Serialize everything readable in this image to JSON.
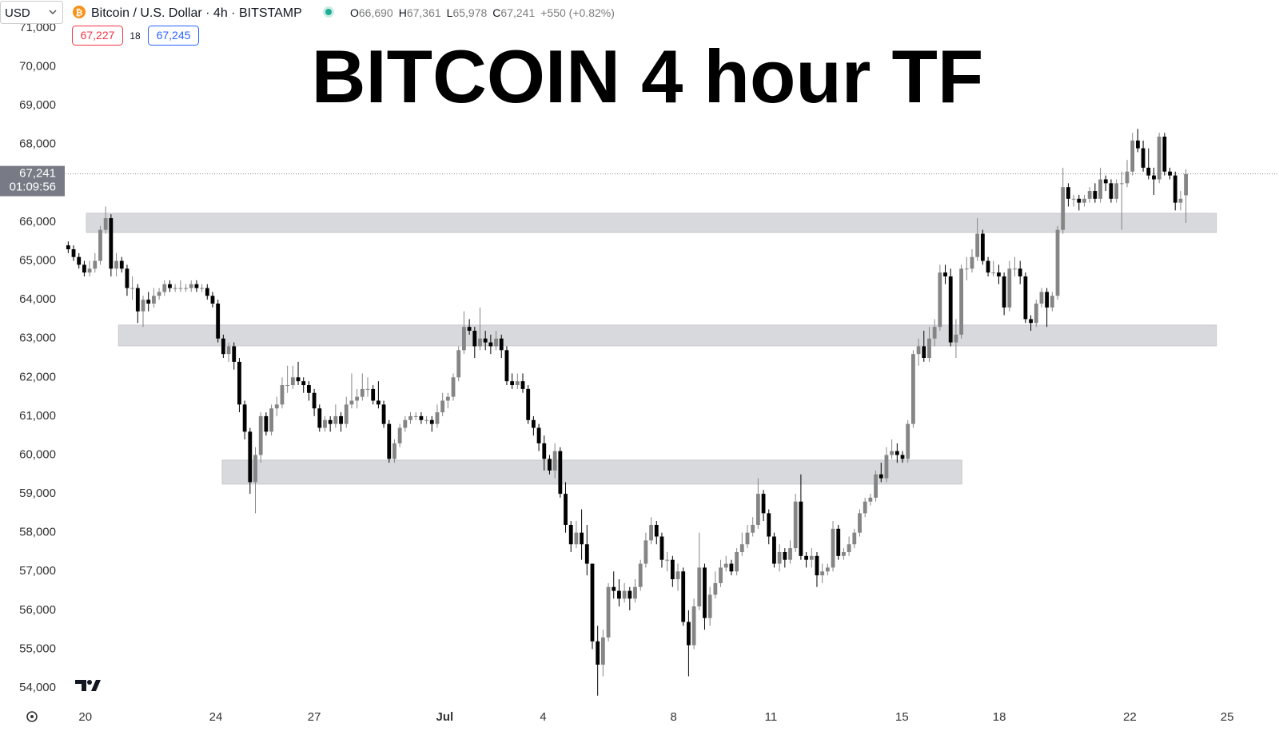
{
  "chart_data": {
    "type": "candlestick",
    "title": "BITCOIN 4 hour TF",
    "currency": "USD",
    "symbol": "Bitcoin / U.S. Dollar · 4h · BITSTAMP",
    "ohlc_legend": [
      {
        "key": "O",
        "text": "66,690"
      },
      {
        "key": "H",
        "text": "67,361"
      },
      {
        "key": "L",
        "text": "65,978"
      },
      {
        "key": "C",
        "text": "67,241"
      }
    ],
    "change": "+550 (+0.82%)",
    "bid": "67,227",
    "spread": "18",
    "ask": "67,245",
    "last_price": {
      "value": 67241,
      "label": "67,241"
    },
    "countdown": "01:09:56",
    "up_color": "#858585",
    "down_color": "#000000",
    "ylim": [
      53610,
      71720
    ],
    "yticks": [
      {
        "value": 54000,
        "label": "54,000"
      },
      {
        "value": 55000,
        "label": "55,000"
      },
      {
        "value": 56000,
        "label": "56,000"
      },
      {
        "value": 57000,
        "label": "57,000"
      },
      {
        "value": 58000,
        "label": "58,000"
      },
      {
        "value": 59000,
        "label": "59,000"
      },
      {
        "value": 60000,
        "label": "60,000"
      },
      {
        "value": 61000,
        "label": "61,000"
      },
      {
        "value": 62000,
        "label": "62,000"
      },
      {
        "value": 63000,
        "label": "63,000"
      },
      {
        "value": 64000,
        "label": "64,000"
      },
      {
        "value": 65000,
        "label": "65,000"
      },
      {
        "value": 66000,
        "label": "66,000"
      },
      {
        "value": 67000,
        "label": "67,000"
      },
      {
        "value": 68000,
        "label": "68,000"
      },
      {
        "value": 69000,
        "label": "69,000"
      },
      {
        "value": 70000,
        "label": "70,000"
      },
      {
        "value": 71000,
        "label": "71,000"
      }
    ],
    "xlim": [
      -0.5,
      226.4
    ],
    "xticks": [
      {
        "value": 3.2,
        "label": "20"
      },
      {
        "value": 27.6,
        "label": "24"
      },
      {
        "value": 46.0,
        "label": "27"
      },
      {
        "value": 70.4,
        "label": "Jul"
      },
      {
        "value": 88.8,
        "label": "4"
      },
      {
        "value": 113.2,
        "label": "8"
      },
      {
        "value": 131.4,
        "label": "11"
      },
      {
        "value": 155.9,
        "label": "15"
      },
      {
        "value": 174.1,
        "label": "18"
      },
      {
        "value": 198.5,
        "label": "22"
      },
      {
        "value": 216.7,
        "label": "25"
      }
    ],
    "zones": [
      {
        "low": 65733,
        "high": 66226,
        "start": 3.4,
        "end": 214.7
      },
      {
        "low": 62811,
        "high": 63346,
        "start": 9.4,
        "end": 214.7
      },
      {
        "low": 59251,
        "high": 59868,
        "start": 28.8,
        "end": 167.1
      }
    ],
    "candles": [
      [
        65400,
        65500,
        65200,
        65300
      ],
      [
        65300,
        65400,
        65000,
        65100
      ],
      [
        65100,
        65200,
        64800,
        64900
      ],
      [
        64900,
        65000,
        64600,
        64700
      ],
      [
        64700,
        65000,
        64600,
        64800
      ],
      [
        64800,
        65200,
        64700,
        65000
      ],
      [
        65000,
        65900,
        64900,
        65800
      ],
      [
        65800,
        66400,
        65700,
        66100
      ],
      [
        66100,
        66200,
        64600,
        64800
      ],
      [
        64800,
        65200,
        64600,
        65000
      ],
      [
        65000,
        65100,
        64700,
        64800
      ],
      [
        64800,
        64900,
        64100,
        64300
      ],
      [
        64300,
        64600,
        64000,
        64300
      ],
      [
        64300,
        64400,
        63400,
        63700
      ],
      [
        63700,
        64100,
        63300,
        64000
      ],
      [
        64000,
        64200,
        63700,
        63900
      ],
      [
        63900,
        64300,
        63800,
        64100
      ],
      [
        64100,
        64300,
        64000,
        64200
      ],
      [
        64200,
        64500,
        64100,
        64400
      ],
      [
        64400,
        64500,
        64200,
        64300
      ],
      [
        64300,
        64400,
        64200,
        64300
      ],
      [
        64300,
        64500,
        64200,
        64300
      ],
      [
        64300,
        64400,
        64200,
        64300
      ],
      [
        64300,
        64500,
        64200,
        64400
      ],
      [
        64400,
        64500,
        64200,
        64300
      ],
      [
        64300,
        64400,
        64200,
        64300
      ],
      [
        64300,
        64400,
        64000,
        64100
      ],
      [
        64100,
        64200,
        63800,
        63900
      ],
      [
        63900,
        64000,
        62900,
        63000
      ],
      [
        63000,
        63100,
        62500,
        62600
      ],
      [
        62600,
        62900,
        62400,
        62800
      ],
      [
        62800,
        62900,
        62200,
        62400
      ],
      [
        62400,
        62500,
        61100,
        61300
      ],
      [
        61300,
        61400,
        60400,
        60600
      ],
      [
        60600,
        60700,
        59000,
        59300
      ],
      [
        59300,
        60200,
        58500,
        60000
      ],
      [
        60000,
        61100,
        59800,
        61000
      ],
      [
        61000,
        61100,
        60500,
        60600
      ],
      [
        60600,
        61300,
        60500,
        61200
      ],
      [
        61200,
        61500,
        61000,
        61300
      ],
      [
        61300,
        62000,
        61200,
        61800
      ],
      [
        61800,
        62300,
        61600,
        61800
      ],
      [
        61800,
        62300,
        61700,
        62000
      ],
      [
        62000,
        62400,
        61800,
        61900
      ],
      [
        61900,
        62000,
        61600,
        61800
      ],
      [
        61800,
        61900,
        61400,
        61600
      ],
      [
        61600,
        61700,
        61000,
        61200
      ],
      [
        61200,
        61300,
        60600,
        60700
      ],
      [
        60700,
        61000,
        60600,
        60900
      ],
      [
        60900,
        61000,
        60600,
        60800
      ],
      [
        60800,
        61300,
        60700,
        61000
      ],
      [
        61000,
        61100,
        60600,
        60800
      ],
      [
        60800,
        61500,
        60700,
        61300
      ],
      [
        61300,
        62100,
        61200,
        61400
      ],
      [
        61400,
        61700,
        61200,
        61500
      ],
      [
        61500,
        62100,
        61400,
        61700
      ],
      [
        61700,
        62000,
        61500,
        61700
      ],
      [
        61700,
        61800,
        61300,
        61400
      ],
      [
        61400,
        61900,
        61200,
        61300
      ],
      [
        61300,
        61400,
        60700,
        60800
      ],
      [
        60800,
        60900,
        59800,
        59900
      ],
      [
        59900,
        60400,
        59800,
        60300
      ],
      [
        60300,
        60800,
        60200,
        60700
      ],
      [
        60700,
        61000,
        60600,
        60900
      ],
      [
        60900,
        61100,
        60800,
        61000
      ],
      [
        61000,
        61100,
        60900,
        61000
      ],
      [
        61000,
        61100,
        60800,
        60900
      ],
      [
        60900,
        61000,
        60800,
        60900
      ],
      [
        60900,
        61000,
        60600,
        60800
      ],
      [
        60800,
        61300,
        60700,
        61100
      ],
      [
        61100,
        61600,
        61000,
        61400
      ],
      [
        61400,
        61600,
        61200,
        61500
      ],
      [
        61500,
        62100,
        61400,
        62000
      ],
      [
        62000,
        62800,
        61900,
        62700
      ],
      [
        62700,
        63700,
        62600,
        63300
      ],
      [
        63300,
        63500,
        63100,
        63200
      ],
      [
        63200,
        63300,
        62500,
        62800
      ],
      [
        62800,
        63800,
        62700,
        63000
      ],
      [
        63000,
        63200,
        62700,
        62900
      ],
      [
        62900,
        63100,
        62600,
        62800
      ],
      [
        62800,
        63200,
        62700,
        63000
      ],
      [
        63000,
        63100,
        62500,
        62700
      ],
      [
        62700,
        62800,
        61800,
        61900
      ],
      [
        61900,
        62100,
        61700,
        61800
      ],
      [
        61800,
        62100,
        61700,
        61900
      ],
      [
        61900,
        62100,
        61600,
        61700
      ],
      [
        61700,
        61800,
        60800,
        60900
      ],
      [
        60900,
        61000,
        60500,
        60700
      ],
      [
        60700,
        60800,
        60100,
        60300
      ],
      [
        60300,
        60500,
        59600,
        59900
      ],
      [
        59900,
        60000,
        59500,
        59600
      ],
      [
        59600,
        60300,
        59400,
        60100
      ],
      [
        60100,
        60200,
        58900,
        59000
      ],
      [
        59000,
        59300,
        58000,
        58200
      ],
      [
        58200,
        58300,
        57500,
        57700
      ],
      [
        57700,
        58300,
        57600,
        58000
      ],
      [
        58000,
        58600,
        57300,
        57700
      ],
      [
        57700,
        58200,
        56900,
        57200
      ],
      [
        57200,
        57200,
        55000,
        55200
      ],
      [
        55200,
        55600,
        53800,
        54600
      ],
      [
        54600,
        55500,
        54300,
        55300
      ],
      [
        55300,
        56700,
        55200,
        56600
      ],
      [
        56600,
        57000,
        56300,
        56500
      ],
      [
        56500,
        56800,
        56100,
        56300
      ],
      [
        56300,
        56700,
        56200,
        56500
      ],
      [
        56500,
        56600,
        56000,
        56300
      ],
      [
        56300,
        56800,
        56200,
        56600
      ],
      [
        56600,
        57300,
        56500,
        57200
      ],
      [
        57200,
        58000,
        57100,
        57800
      ],
      [
        57800,
        58400,
        57700,
        58200
      ],
      [
        58200,
        58300,
        57700,
        57900
      ],
      [
        57900,
        58000,
        57100,
        57300
      ],
      [
        57300,
        57500,
        57000,
        57300
      ],
      [
        57300,
        57400,
        56600,
        56800
      ],
      [
        56800,
        57200,
        56500,
        57000
      ],
      [
        57000,
        57100,
        55600,
        55700
      ],
      [
        55700,
        56000,
        54300,
        55100
      ],
      [
        55100,
        56300,
        55000,
        56100
      ],
      [
        56100,
        58000,
        56000,
        57100
      ],
      [
        57100,
        57200,
        55500,
        55800
      ],
      [
        55800,
        56600,
        55600,
        56400
      ],
      [
        56400,
        57000,
        56300,
        56700
      ],
      [
        56700,
        57300,
        56600,
        57100
      ],
      [
        57100,
        57400,
        57000,
        57200
      ],
      [
        57200,
        57300,
        56900,
        57000
      ],
      [
        57000,
        57600,
        56900,
        57500
      ],
      [
        57500,
        58000,
        57400,
        57700
      ],
      [
        57700,
        58200,
        57600,
        58000
      ],
      [
        58000,
        58400,
        57900,
        58200
      ],
      [
        58200,
        59400,
        58100,
        59000
      ],
      [
        59000,
        59100,
        58300,
        58500
      ],
      [
        58500,
        58600,
        57700,
        57900
      ],
      [
        57900,
        58000,
        57100,
        57200
      ],
      [
        57200,
        57700,
        57000,
        57500
      ],
      [
        57500,
        57600,
        57100,
        57300
      ],
      [
        57300,
        57800,
        57200,
        57600
      ],
      [
        57600,
        59000,
        57500,
        58800
      ],
      [
        58800,
        59500,
        57300,
        57400
      ],
      [
        57400,
        57500,
        57100,
        57300
      ],
      [
        57300,
        57600,
        57100,
        57400
      ],
      [
        57400,
        57500,
        56600,
        56900
      ],
      [
        56900,
        57200,
        56700,
        57000
      ],
      [
        57000,
        57200,
        56900,
        57100
      ],
      [
        57100,
        58300,
        57000,
        58100
      ],
      [
        58100,
        58200,
        57300,
        57400
      ],
      [
        57400,
        57600,
        57300,
        57500
      ],
      [
        57500,
        57900,
        57400,
        57700
      ],
      [
        57700,
        58100,
        57600,
        58000
      ],
      [
        58000,
        58600,
        57900,
        58500
      ],
      [
        58500,
        58900,
        58400,
        58800
      ],
      [
        58800,
        59000,
        58700,
        58900
      ],
      [
        58900,
        59600,
        58800,
        59500
      ],
      [
        59500,
        59800,
        59300,
        59400
      ],
      [
        59400,
        60200,
        59300,
        60000
      ],
      [
        60000,
        60400,
        59900,
        60100
      ],
      [
        60100,
        60300,
        59800,
        60000
      ],
      [
        60000,
        60100,
        59800,
        59900
      ],
      [
        59900,
        60900,
        59800,
        60800
      ],
      [
        60800,
        62700,
        60700,
        62600
      ],
      [
        62600,
        63000,
        62300,
        62800
      ],
      [
        62800,
        63200,
        62400,
        62500
      ],
      [
        62500,
        63300,
        62400,
        63000
      ],
      [
        63000,
        63500,
        62800,
        63300
      ],
      [
        63300,
        64900,
        63200,
        64700
      ],
      [
        64700,
        64900,
        64400,
        64600
      ],
      [
        64600,
        64800,
        62800,
        62900
      ],
      [
        62900,
        63500,
        62500,
        63100
      ],
      [
        63100,
        64900,
        63000,
        64800
      ],
      [
        64800,
        65100,
        64500,
        64800
      ],
      [
        64800,
        65300,
        64700,
        65100
      ],
      [
        65100,
        66100,
        65000,
        65700
      ],
      [
        65700,
        65800,
        64900,
        65000
      ],
      [
        65000,
        65100,
        64600,
        64700
      ],
      [
        64700,
        65000,
        64600,
        64700
      ],
      [
        64700,
        64900,
        64400,
        64600
      ],
      [
        64600,
        64700,
        63600,
        63800
      ],
      [
        63800,
        65000,
        63700,
        64800
      ],
      [
        64800,
        65100,
        64600,
        64800
      ],
      [
        64800,
        65000,
        64400,
        64600
      ],
      [
        64600,
        64700,
        63400,
        63500
      ],
      [
        63500,
        63600,
        63200,
        63400
      ],
      [
        63400,
        64000,
        63300,
        63900
      ],
      [
        63900,
        64300,
        63800,
        64200
      ],
      [
        64200,
        64300,
        63300,
        63800
      ],
      [
        63800,
        64200,
        63700,
        64100
      ],
      [
        64100,
        65900,
        64000,
        65800
      ],
      [
        65800,
        67400,
        65700,
        66900
      ],
      [
        66900,
        67000,
        66400,
        66600
      ],
      [
        66600,
        66700,
        66400,
        66600
      ],
      [
        66600,
        66700,
        66300,
        66500
      ],
      [
        66500,
        66700,
        66400,
        66600
      ],
      [
        66600,
        66900,
        66500,
        66800
      ],
      [
        66800,
        67000,
        66500,
        66600
      ],
      [
        66600,
        67400,
        66500,
        67100
      ],
      [
        67100,
        67200,
        66800,
        67000
      ],
      [
        67000,
        67100,
        66500,
        66600
      ],
      [
        66600,
        67100,
        66500,
        67000
      ],
      [
        67000,
        67300,
        65800,
        67000
      ],
      [
        67000,
        67600,
        66900,
        67300
      ],
      [
        67300,
        68300,
        67200,
        68100
      ],
      [
        68100,
        68400,
        67800,
        67900
      ],
      [
        67900,
        68100,
        67300,
        67400
      ],
      [
        67400,
        67900,
        67100,
        67200
      ],
      [
        67200,
        67400,
        66700,
        67100
      ],
      [
        67100,
        68300,
        67000,
        68200
      ],
      [
        68200,
        68300,
        67200,
        67300
      ],
      [
        67300,
        67400,
        67100,
        67200
      ],
      [
        67200,
        67300,
        66300,
        66500
      ],
      [
        66500,
        66800,
        66300,
        66600
      ],
      [
        66690,
        67361,
        65978,
        67241
      ]
    ]
  }
}
